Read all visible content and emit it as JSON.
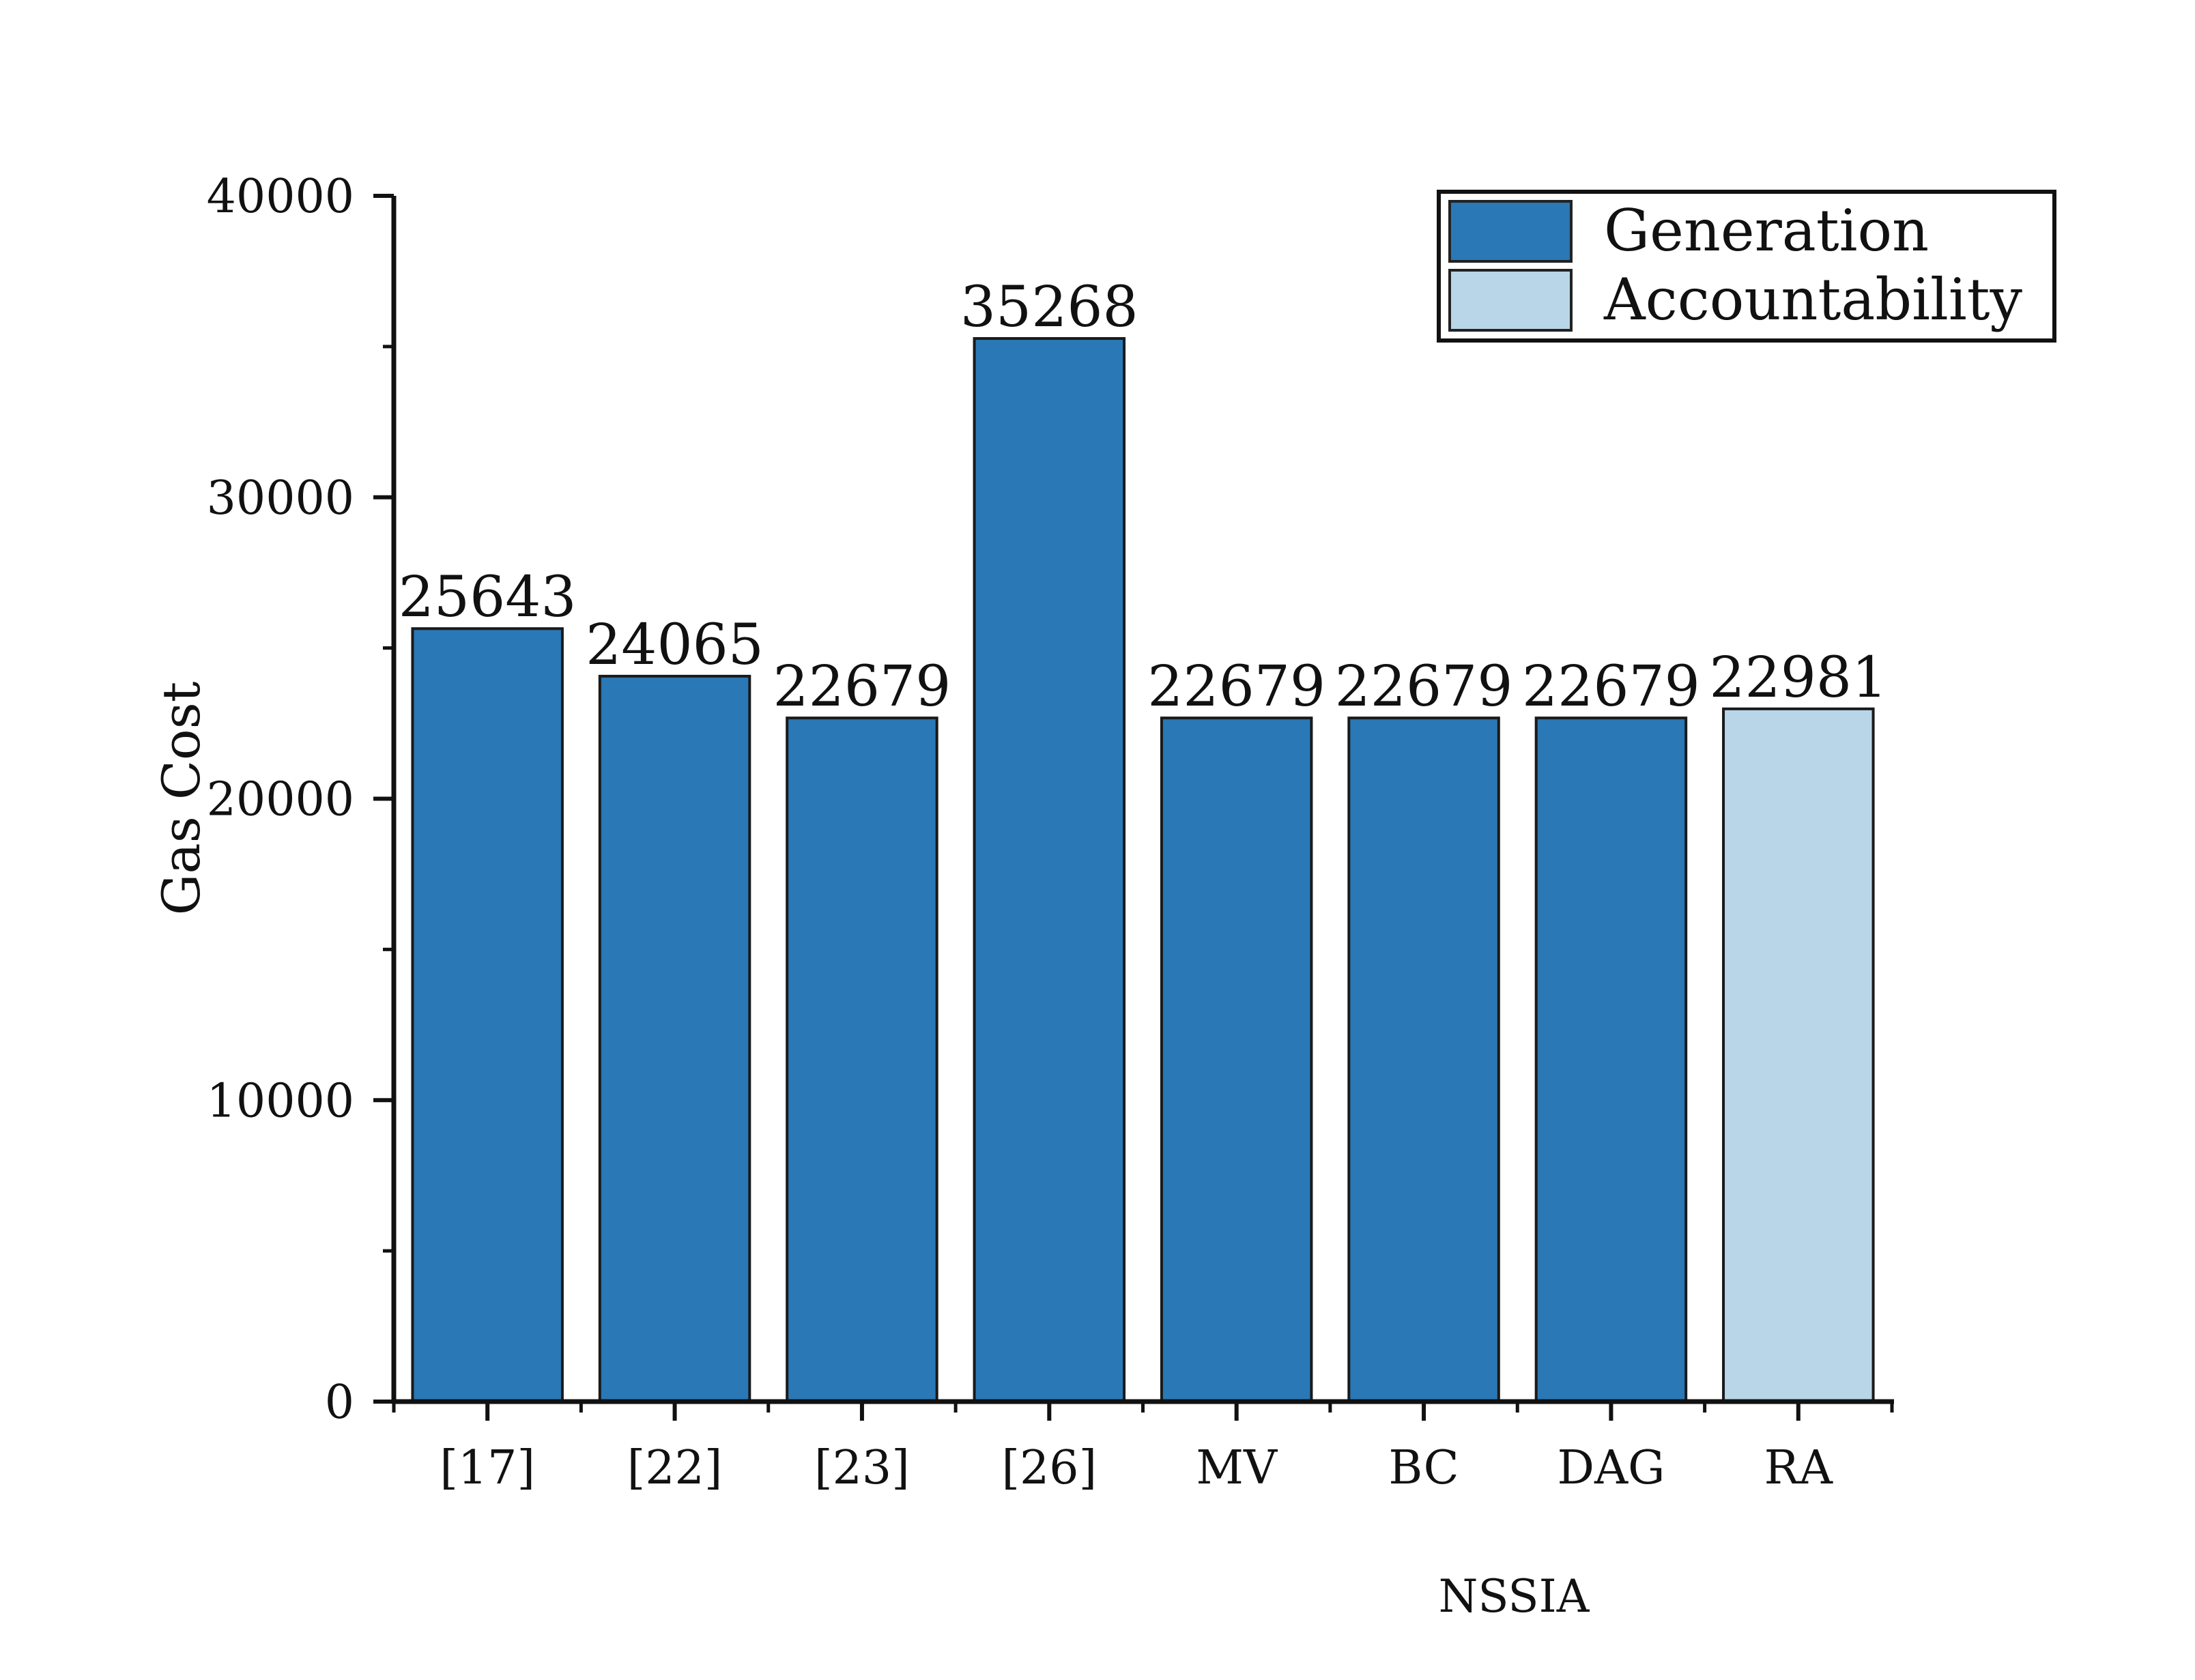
{
  "chart_data": {
    "type": "bar",
    "categories": [
      "[17]",
      "[22]",
      "[23]",
      "[26]",
      "MV",
      "BC",
      "DAG",
      "RA"
    ],
    "values": [
      25643,
      24065,
      22679,
      35268,
      22679,
      22679,
      22679,
      22981
    ],
    "value_labels": [
      "25643",
      "24065",
      "22679",
      "35268",
      "22679",
      "22679",
      "22679",
      "22981"
    ],
    "series_membership": [
      "Generation",
      "Generation",
      "Generation",
      "Generation",
      "Generation",
      "Generation",
      "Generation",
      "Accountability"
    ],
    "series": [
      {
        "name": "Generation",
        "color": "#2a78b6"
      },
      {
        "name": "Accountability",
        "color": "#b8d6e8"
      }
    ],
    "ylabel": "Gas Cost",
    "xlabel": "NSSIA",
    "ylim": [
      0,
      40000
    ],
    "yticks": [
      0,
      10000,
      20000,
      30000,
      40000
    ],
    "ytick_labels": [
      "0",
      "10000",
      "20000",
      "30000",
      "40000"
    ],
    "legend_position": "top-right",
    "grid": false
  }
}
